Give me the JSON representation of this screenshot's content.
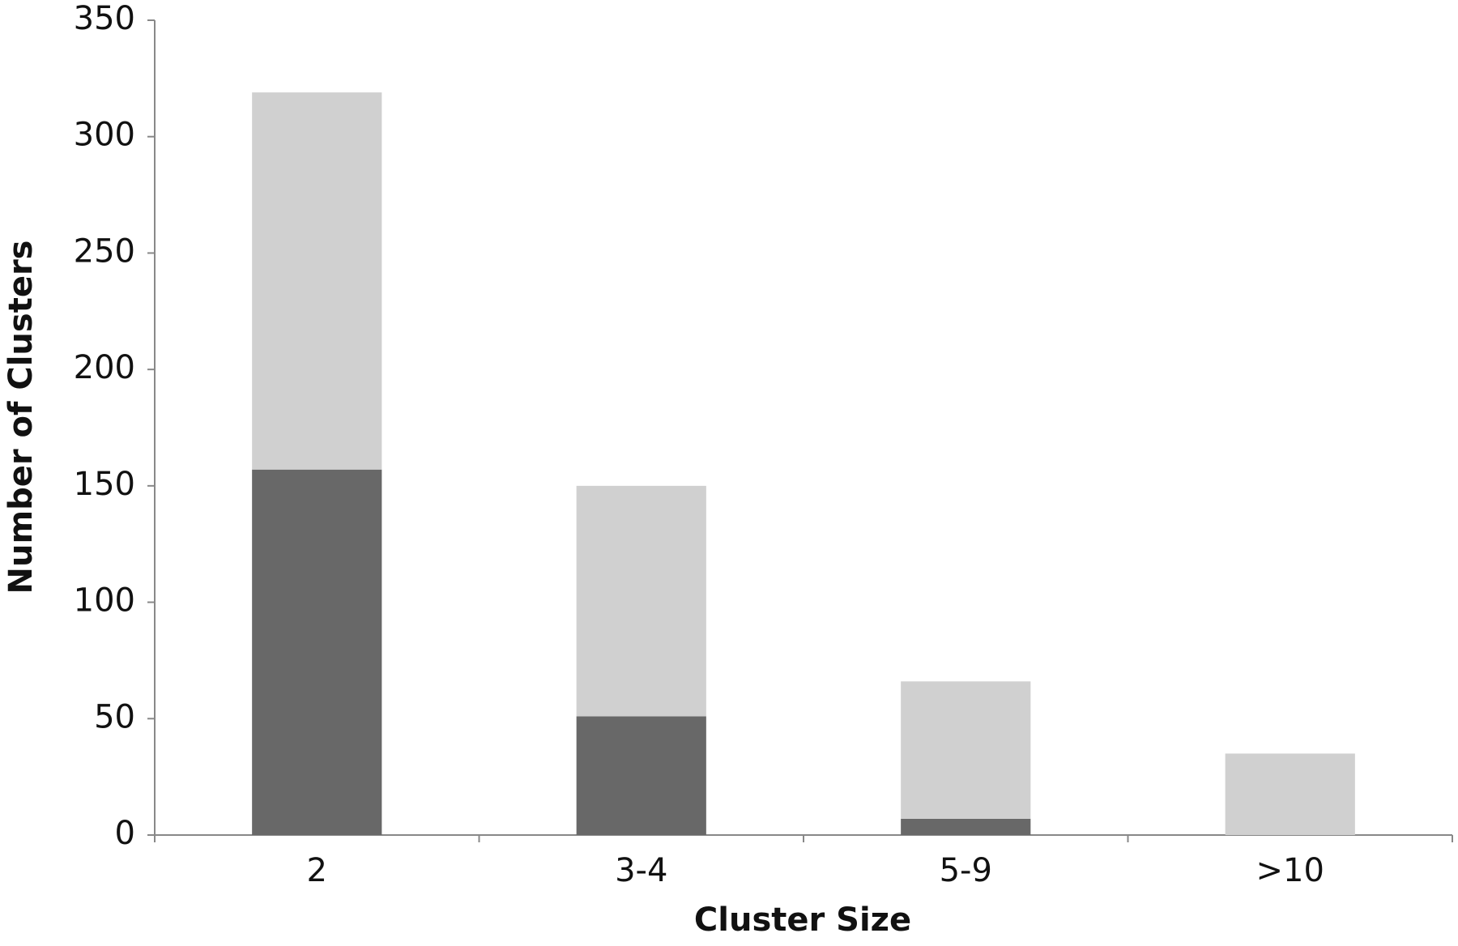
{
  "chart_data": {
    "type": "stacked-bar",
    "x_label": "Cluster Size",
    "y_label": "Number of Clusters",
    "categories": [
      "2",
      "3-4",
      "5-9",
      ">10"
    ],
    "series": [
      {
        "color": "#686868",
        "values": [
          157,
          51,
          7,
          0
        ]
      },
      {
        "color": "#d0d0d0",
        "values": [
          162,
          99,
          59,
          35
        ]
      }
    ],
    "ylim": [
      0,
      350
    ],
    "yticks": [
      0,
      50,
      100,
      150,
      200,
      250,
      300,
      350
    ],
    "grid": false
  }
}
